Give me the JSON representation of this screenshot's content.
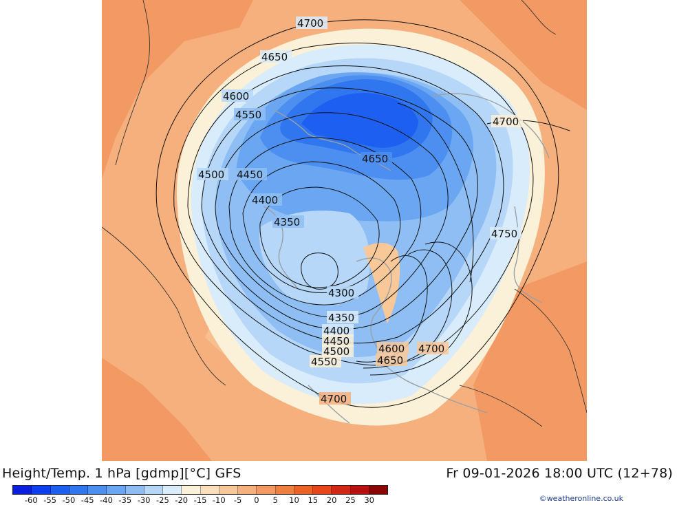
{
  "title": "Height/Temp. 1 hPa [gdmp][°C] GFS",
  "valid_time": "Fr 09-01-2026 18:00 UTC (12+78)",
  "credit": "©weatheronline.co.uk",
  "colors": {
    "background_field": "#f6b07e",
    "warm_strong": "#f39963",
    "cold_core": "#0a4fe8"
  },
  "colorbar": {
    "labels": [
      "-60",
      "-55",
      "-50",
      "-45",
      "-40",
      "-35",
      "-30",
      "-25",
      "-20",
      "-15",
      "-10",
      "-5",
      "0",
      "5",
      "10",
      "15",
      "20",
      "25",
      "30"
    ],
    "colors": [
      "#0a1fe0",
      "#0d3ff0",
      "#1d5ff0",
      "#2f76ef",
      "#4d8ff0",
      "#6aa6f2",
      "#8ebef4",
      "#b6d7f8",
      "#d9ecfb",
      "#fbf0d8",
      "#fce0bb",
      "#f9c899",
      "#f6b07e",
      "#f39963",
      "#f0803f",
      "#ec6325",
      "#e8461a",
      "#d42616",
      "#b80f0f",
      "#8c0505"
    ]
  },
  "contour_labels": [
    "4700",
    "4650",
    "4600",
    "4550",
    "4500",
    "4450",
    "4400",
    "4350",
    "4300",
    "4350",
    "4400",
    "4450",
    "4500",
    "4550",
    "4600",
    "4650",
    "4700",
    "4700",
    "4650",
    "4750",
    "4700"
  ]
}
